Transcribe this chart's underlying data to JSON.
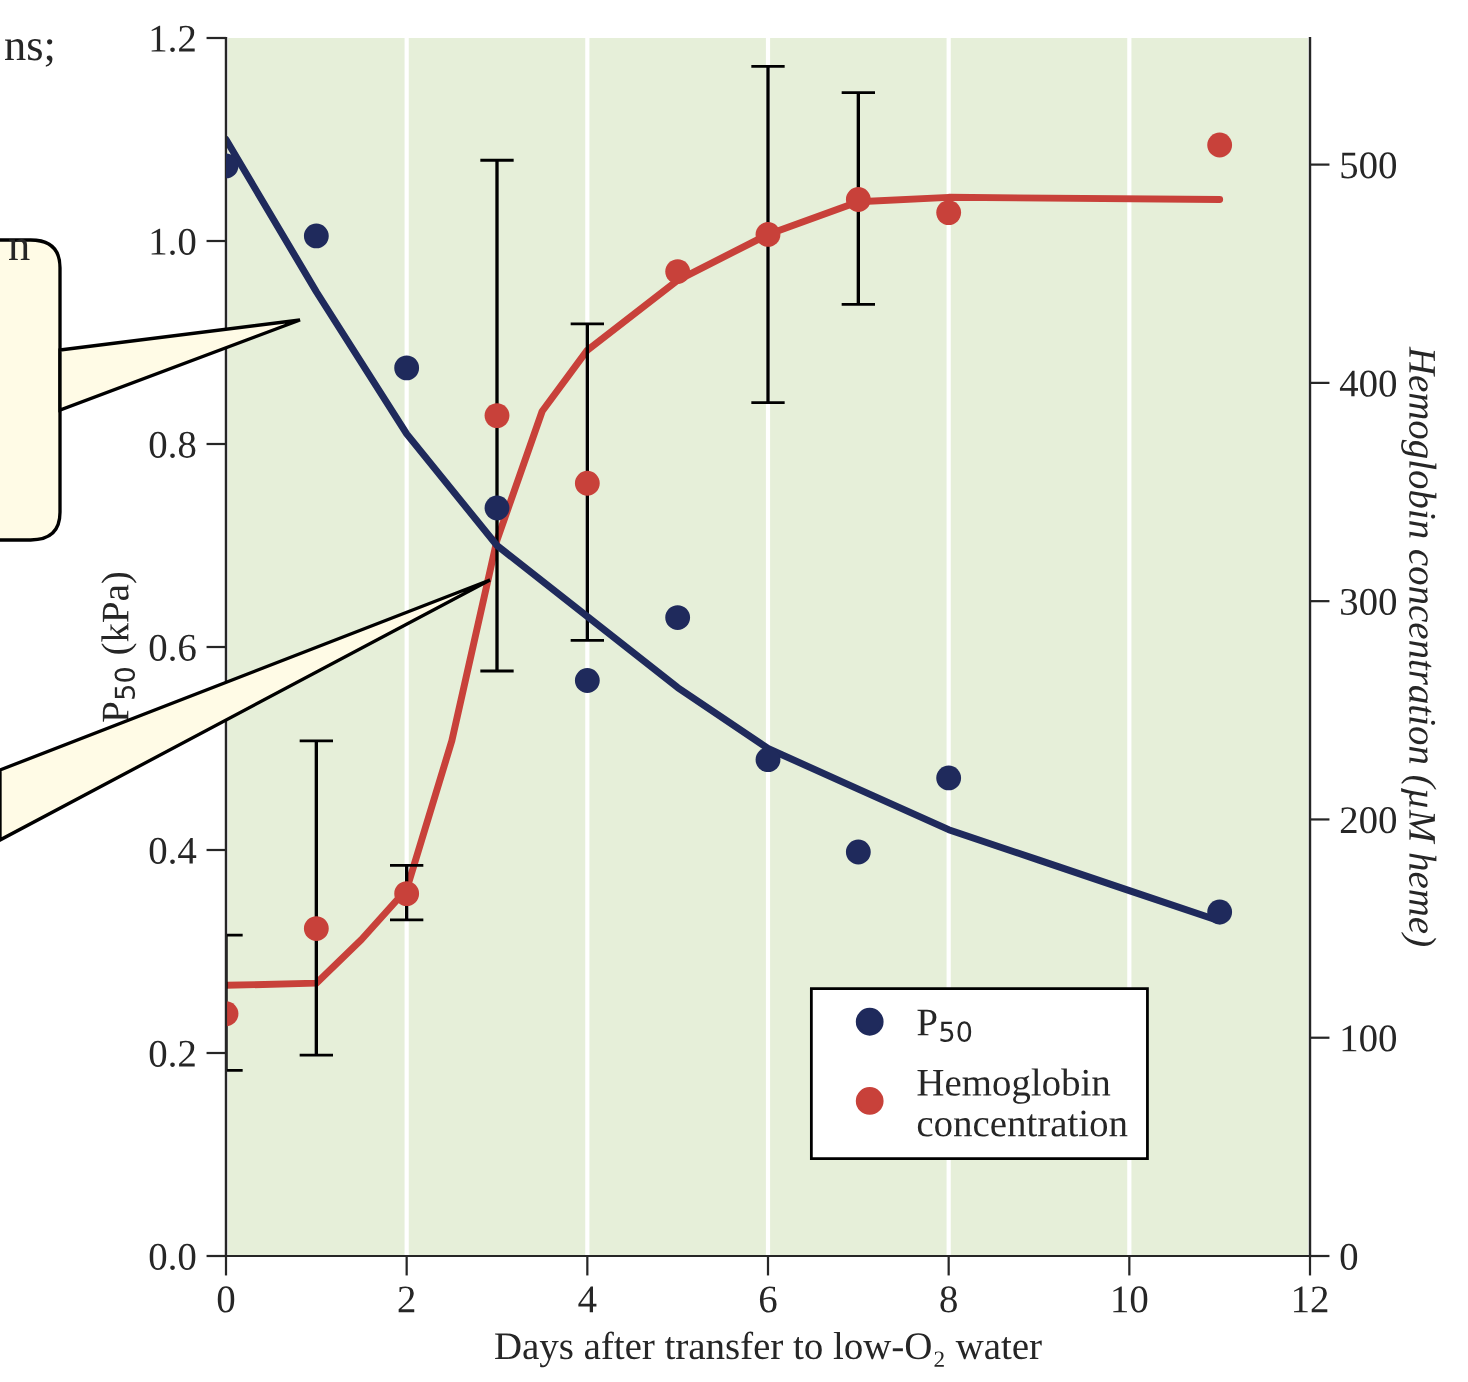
{
  "chart_data": {
    "type": "scatter",
    "xlabel": "Days after transfer to low-O₂ water",
    "ylabel": "P$_{50}$ (kPa)",
    "y2label": "Hemoglobin concentration (µM heme)",
    "annotations": [
      "ns;",
      "n"
    ],
    "xlim": [
      0,
      12
    ],
    "xticks": [
      0,
      2,
      4,
      6,
      8,
      10,
      12
    ],
    "ylim": [
      0,
      1.2
    ],
    "yticks": [
      {
        "value": 0,
        "label": "0.0"
      },
      {
        "value": 0.2,
        "label": "0.2"
      },
      {
        "value": 0.4,
        "label": "0.4"
      },
      {
        "value": 0.6,
        "label": "0.6"
      },
      {
        "value": 0.8,
        "label": "0.8"
      },
      {
        "value": 1.0,
        "label": "1.0"
      },
      {
        "value": 1.2,
        "label": "1.2"
      }
    ],
    "y2lim": [
      0,
      558
    ],
    "y2ticks": [
      0,
      100,
      200,
      300,
      400,
      500
    ],
    "grid": "x",
    "legend": "bottom right",
    "series": [
      {
        "name": "P$_{50}$",
        "marker": "circle",
        "color": "#1f2a5c",
        "x": [
          0,
          1,
          2,
          3,
          4,
          5,
          6,
          7,
          8,
          11
        ],
        "values": [
          1.074,
          1.005,
          0.875,
          0.737,
          0.567,
          0.629,
          0.489,
          0.398,
          0.471,
          0.339
        ]
      },
      {
        "type": "line",
        "color": "#1f2a5c",
        "x": [
          0,
          1,
          2,
          3,
          4,
          5,
          6,
          7,
          8,
          9,
          10,
          11
        ],
        "values": [
          1.1,
          0.95,
          0.81,
          0.7,
          0.63,
          0.56,
          0.5,
          0.46,
          0.42,
          0.39,
          0.36,
          0.33
        ]
      },
      {
        "name": "Hemoglobin concentration",
        "marker": "circle",
        "axis": "y2",
        "color": "#c8413a",
        "x": [
          0,
          1,
          2,
          3,
          4,
          5,
          6,
          7,
          8,
          11
        ],
        "values": [
          111,
          150,
          166,
          385,
          354,
          451,
          468,
          484,
          478,
          509
        ],
        "errors": [
          [
            85,
            147
          ],
          [
            92,
            236
          ],
          [
            154,
            179
          ],
          [
            268,
            502
          ],
          [
            282,
            427
          ],
          null,
          [
            391,
            545
          ],
          [
            436,
            533
          ],
          null,
          null
        ]
      },
      {
        "type": "line",
        "axis": "y2",
        "color": "#c8413a",
        "x": [
          0,
          1,
          1.5,
          2,
          2.5,
          3,
          3.5,
          4,
          5,
          6,
          7,
          8,
          11
        ],
        "values": [
          124,
          125,
          145,
          168,
          236,
          328,
          387,
          415,
          447,
          468,
          483,
          485,
          484
        ]
      }
    ]
  }
}
